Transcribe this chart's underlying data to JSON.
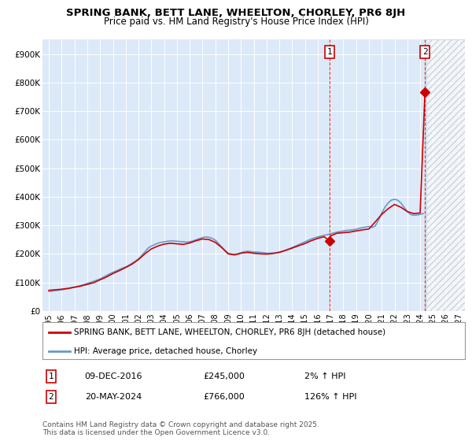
{
  "title": "SPRING BANK, BETT LANE, WHEELTON, CHORLEY, PR6 8JH",
  "subtitle": "Price paid vs. HM Land Registry's House Price Index (HPI)",
  "ylim": [
    0,
    950000
  ],
  "xlim_start": 1994.5,
  "xlim_end": 2027.5,
  "yticks": [
    0,
    100000,
    200000,
    300000,
    400000,
    500000,
    600000,
    700000,
    800000,
    900000
  ],
  "ytick_labels": [
    "£0",
    "£100K",
    "£200K",
    "£300K",
    "£400K",
    "£500K",
    "£600K",
    "£700K",
    "£800K",
    "£900K"
  ],
  "xticks": [
    1995,
    1996,
    1997,
    1998,
    1999,
    2000,
    2001,
    2002,
    2003,
    2004,
    2005,
    2006,
    2007,
    2008,
    2009,
    2010,
    2011,
    2012,
    2013,
    2014,
    2015,
    2016,
    2017,
    2018,
    2019,
    2020,
    2021,
    2022,
    2023,
    2024,
    2025,
    2026,
    2027
  ],
  "bg_color": "#dce9f8",
  "hatch_start": 2024.5,
  "vline1_x": 2016.94,
  "vline2_x": 2024.38,
  "sale1_x": 2016.94,
  "sale1_y": 245000,
  "sale1_label": "1",
  "sale2_x": 2024.38,
  "sale2_y": 766000,
  "sale2_label": "2",
  "sale_color": "#cc0000",
  "hpi_line_color": "#6699cc",
  "property_line_color": "#cc0000",
  "legend_property": "SPRING BANK, BETT LANE, WHEELTON, CHORLEY, PR6 8JH (detached house)",
  "legend_hpi": "HPI: Average price, detached house, Chorley",
  "annotation1_date": "09-DEC-2016",
  "annotation1_price": "£245,000",
  "annotation1_hpi": "2% ↑ HPI",
  "annotation2_date": "20-MAY-2024",
  "annotation2_price": "£766,000",
  "annotation2_hpi": "126% ↑ HPI",
  "footer": "Contains HM Land Registry data © Crown copyright and database right 2025.\nThis data is licensed under the Open Government Licence v3.0.",
  "hpi_data_x": [
    1995.0,
    1995.25,
    1995.5,
    1995.75,
    1996.0,
    1996.25,
    1996.5,
    1996.75,
    1997.0,
    1997.25,
    1997.5,
    1997.75,
    1998.0,
    1998.25,
    1998.5,
    1998.75,
    1999.0,
    1999.25,
    1999.5,
    1999.75,
    2000.0,
    2000.25,
    2000.5,
    2000.75,
    2001.0,
    2001.25,
    2001.5,
    2001.75,
    2002.0,
    2002.25,
    2002.5,
    2002.75,
    2003.0,
    2003.25,
    2003.5,
    2003.75,
    2004.0,
    2004.25,
    2004.5,
    2004.75,
    2005.0,
    2005.25,
    2005.5,
    2005.75,
    2006.0,
    2006.25,
    2006.5,
    2006.75,
    2007.0,
    2007.25,
    2007.5,
    2007.75,
    2008.0,
    2008.25,
    2008.5,
    2008.75,
    2009.0,
    2009.25,
    2009.5,
    2009.75,
    2010.0,
    2010.25,
    2010.5,
    2010.75,
    2011.0,
    2011.25,
    2011.5,
    2011.75,
    2012.0,
    2012.25,
    2012.5,
    2012.75,
    2013.0,
    2013.25,
    2013.5,
    2013.75,
    2014.0,
    2014.25,
    2014.5,
    2014.75,
    2015.0,
    2015.25,
    2015.5,
    2015.75,
    2016.0,
    2016.25,
    2016.5,
    2016.75,
    2017.0,
    2017.25,
    2017.5,
    2017.75,
    2018.0,
    2018.25,
    2018.5,
    2018.75,
    2019.0,
    2019.25,
    2019.5,
    2019.75,
    2020.0,
    2020.25,
    2020.5,
    2020.75,
    2021.0,
    2021.25,
    2021.5,
    2021.75,
    2022.0,
    2022.25,
    2022.5,
    2022.75,
    2023.0,
    2023.25,
    2023.5,
    2023.75,
    2024.0,
    2024.25
  ],
  "hpi_data_y": [
    68000,
    69500,
    71000,
    72500,
    74000,
    76000,
    78000,
    80500,
    83000,
    86000,
    89000,
    92500,
    96000,
    100000,
    104000,
    108000,
    112000,
    118000,
    124000,
    130000,
    135000,
    140000,
    145000,
    150000,
    154000,
    160000,
    167000,
    174000,
    182000,
    194000,
    207000,
    220000,
    227000,
    232000,
    237000,
    240000,
    242000,
    244000,
    245000,
    245000,
    244000,
    243000,
    242000,
    241000,
    242000,
    245000,
    249000,
    253000,
    257000,
    259000,
    258000,
    254000,
    248000,
    236000,
    224000,
    212000,
    202000,
    199000,
    198000,
    200000,
    204000,
    207000,
    209000,
    208000,
    206000,
    206000,
    205000,
    204000,
    202000,
    202000,
    203000,
    204000,
    206000,
    209000,
    213000,
    217000,
    222000,
    227000,
    232000,
    237000,
    242000,
    247000,
    252000,
    256000,
    259000,
    262000,
    265000,
    267000,
    270000,
    273000,
    276000,
    278000,
    280000,
    282000,
    283000,
    284000,
    286000,
    289000,
    292000,
    294000,
    296000,
    292000,
    298000,
    318000,
    343000,
    363000,
    378000,
    388000,
    391000,
    388000,
    378000,
    363000,
    348000,
    338000,
    335000,
    336000,
    338000,
    341000
  ],
  "property_data_x": [
    1995.0,
    1995.5,
    1996.0,
    1996.5,
    1997.0,
    1997.5,
    1998.0,
    1998.5,
    1999.0,
    1999.5,
    2000.0,
    2000.5,
    2001.0,
    2001.5,
    2002.0,
    2002.5,
    2003.0,
    2003.5,
    2004.0,
    2004.5,
    2005.0,
    2005.5,
    2006.0,
    2006.5,
    2007.0,
    2007.5,
    2008.0,
    2008.5,
    2009.0,
    2009.5,
    2010.0,
    2010.5,
    2011.0,
    2011.5,
    2012.0,
    2012.5,
    2013.0,
    2013.5,
    2014.0,
    2014.5,
    2015.0,
    2015.5,
    2016.0,
    2016.5,
    2016.94,
    2017.0,
    2017.5,
    2018.0,
    2018.5,
    2019.0,
    2019.5,
    2020.0,
    2020.5,
    2021.0,
    2021.5,
    2022.0,
    2022.5,
    2023.0,
    2023.5,
    2024.0,
    2024.38
  ],
  "property_data_y": [
    72000,
    74000,
    76000,
    79000,
    83000,
    87000,
    93000,
    99000,
    109000,
    119000,
    131000,
    141000,
    152000,
    164000,
    180000,
    200000,
    217000,
    227000,
    234000,
    237000,
    235000,
    233000,
    238000,
    246000,
    252000,
    250000,
    240000,
    222000,
    200000,
    196000,
    202000,
    205000,
    202000,
    200000,
    199000,
    201000,
    205000,
    212000,
    220000,
    228000,
    236000,
    246000,
    254000,
    260000,
    245000,
    263000,
    272000,
    274000,
    276000,
    280000,
    284000,
    287000,
    312000,
    338000,
    358000,
    373000,
    363000,
    348000,
    341000,
    343000,
    766000
  ]
}
